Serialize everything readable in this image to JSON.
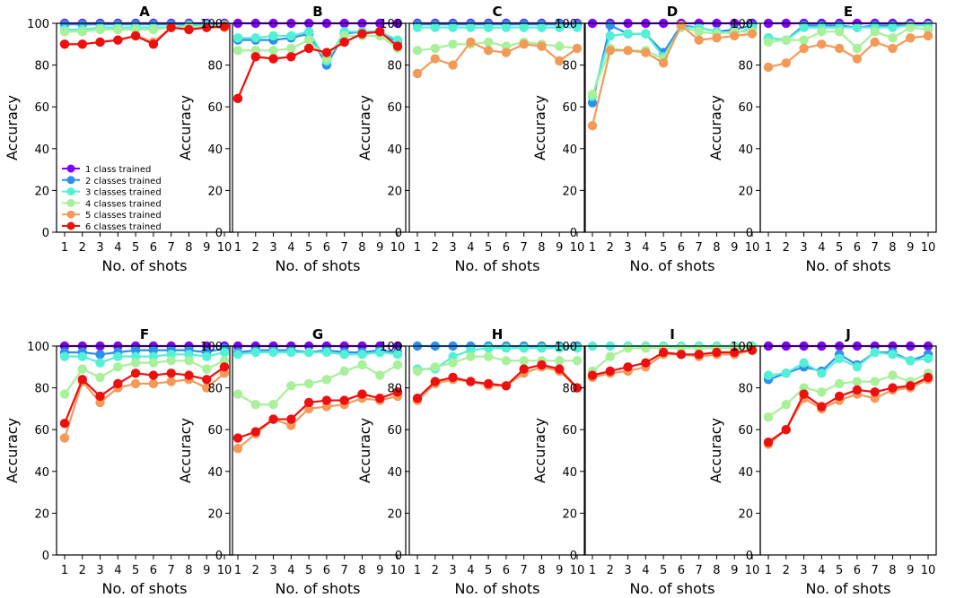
{
  "chart_data": {
    "type": "line",
    "shared": {
      "x": [
        1,
        2,
        3,
        4,
        5,
        6,
        7,
        8,
        9,
        10
      ],
      "xticks": [
        "1",
        "2",
        "3",
        "4",
        "5",
        "6",
        "7",
        "8",
        "9",
        "10"
      ],
      "xlabel": "No. of shots",
      "ylabel": "Accuracy",
      "ylim": [
        0,
        100
      ],
      "yticks": [
        0,
        20,
        40,
        60,
        80,
        100
      ],
      "legend": {
        "location": "lower-left of panel A",
        "entries": [
          "1 class trained",
          "2 classes trained",
          "3 classes trained",
          "4 classes trained",
          "5 classes trained",
          "6 classes trained"
        ]
      },
      "series_colors": [
        "#8000ff",
        "#2c90ec",
        "#52f0d6",
        "#a8f09a",
        "#f49a58",
        "#ee1010"
      ]
    },
    "panels": [
      {
        "title": "A",
        "series": [
          {
            "name": "1 class trained",
            "values": [
              100,
              100,
              100,
              100,
              100,
              100,
              100,
              100,
              100,
              100
            ]
          },
          {
            "name": "2 classes trained",
            "values": [
              99.5,
              99.5,
              99.5,
              99.5,
              99.5,
              99.5,
              99.5,
              99.5,
              99.5,
              99.5
            ]
          },
          {
            "name": "3 classes trained",
            "values": [
              97,
              97,
              98,
              98,
              98,
              98,
              98,
              99,
              99,
              99
            ]
          },
          {
            "name": "4 classes trained",
            "values": [
              96,
              96,
              97,
              97,
              97,
              97,
              98,
              98,
              98,
              99
            ]
          },
          {
            "name": "5 classes trained",
            "values": [
              90,
              90,
              91,
              92,
              94,
              91,
              98,
              97,
              98,
              98
            ]
          },
          {
            "name": "6 classes trained",
            "values": [
              90,
              90,
              91,
              92,
              94,
              90,
              98,
              97,
              98,
              98.5
            ]
          }
        ]
      },
      {
        "title": "B",
        "series": [
          {
            "name": "1 class trained",
            "values": [
              100,
              100,
              100,
              100,
              100,
              100,
              100,
              100,
              100,
              100
            ]
          },
          {
            "name": "2 classes trained",
            "values": [
              92,
              92,
              92,
              93,
              95,
              80,
              95,
              96,
              96,
              91
            ]
          },
          {
            "name": "3 classes trained",
            "values": [
              93,
              93,
              94,
              94,
              96,
              82,
              96,
              96,
              96,
              92
            ]
          },
          {
            "name": "4 classes trained",
            "values": [
              87,
              87,
              87,
              88,
              92,
              83,
              94,
              94,
              94,
              88
            ]
          },
          {
            "name": "5 classes trained",
            "values": [
              64,
              84,
              83,
              84,
              88,
              86,
              91,
              95,
              96,
              89
            ]
          },
          {
            "name": "6 classes trained",
            "values": [
              64,
              84,
              83,
              84,
              88,
              86,
              91,
              95,
              96,
              89
            ]
          }
        ]
      },
      {
        "title": "C",
        "series": [
          {
            "name": "1 class trained",
            "values": [
              100,
              100,
              100,
              100,
              100,
              100,
              100,
              100,
              100,
              100
            ]
          },
          {
            "name": "2 classes trained",
            "values": [
              99.5,
              99.5,
              99.5,
              99.5,
              99.5,
              99.5,
              99.5,
              99.5,
              99.5,
              99.5
            ]
          },
          {
            "name": "3 classes trained",
            "values": [
              98,
              98,
              98,
              98,
              98,
              98,
              98,
              98,
              98,
              98
            ]
          },
          {
            "name": "4 classes trained",
            "values": [
              87,
              88,
              90,
              90,
              91,
              89,
              91,
              90,
              89,
              88
            ]
          },
          {
            "name": "5 classes trained",
            "values": [
              76,
              83,
              80,
              91,
              87,
              86,
              90,
              89,
              82,
              88
            ]
          }
        ]
      },
      {
        "title": "D",
        "series": [
          {
            "name": "1 class trained",
            "values": [
              100,
              100,
              100,
              100,
              100,
              100,
              100,
              100,
              100,
              100
            ]
          },
          {
            "name": "2 classes trained",
            "values": [
              62,
              99,
              95,
              95,
              86,
              99,
              98,
              96,
              97,
              99
            ]
          },
          {
            "name": "3 classes trained",
            "values": [
              65,
              94,
              95,
              95,
              84,
              98,
              98,
              96,
              95,
              98
            ]
          },
          {
            "name": "4 classes trained",
            "values": [
              66,
              88,
              87,
              87,
              83,
              98,
              96,
              95,
              96,
              96
            ]
          },
          {
            "name": "5 classes trained",
            "values": [
              51,
              87,
              87,
              86,
              81,
              99,
              92,
              93,
              94,
              95
            ]
          }
        ]
      },
      {
        "title": "E",
        "series": [
          {
            "name": "1 class trained",
            "values": [
              100,
              100,
              100,
              100,
              100,
              100,
              100,
              100,
              100,
              100
            ]
          },
          {
            "name": "2 classes trained",
            "values": [
              93,
              92,
              99,
              99,
              99,
              98,
              99,
              99,
              99,
              99
            ]
          },
          {
            "name": "3 classes trained",
            "values": [
              93,
              92,
              98,
              98,
              98,
              98,
              98,
              98,
              99,
              99
            ]
          },
          {
            "name": "4 classes trained",
            "values": [
              91,
              92,
              92,
              96,
              96,
              88,
              96,
              93,
              98,
              97
            ]
          },
          {
            "name": "5 classes trained",
            "values": [
              79,
              81,
              88,
              90,
              88,
              83,
              91,
              88,
              93,
              94
            ]
          }
        ]
      },
      {
        "title": "F",
        "series": [
          {
            "name": "1 class trained",
            "values": [
              100,
              100,
              100,
              100,
              100,
              100,
              100,
              100,
              100,
              100
            ]
          },
          {
            "name": "2 classes trained",
            "values": [
              97,
              97,
              96,
              97,
              98,
              98,
              98,
              98,
              97,
              99
            ]
          },
          {
            "name": "3 classes trained",
            "values": [
              95,
              95,
              92,
              95,
              95,
              95,
              96,
              96,
              95,
              97
            ]
          },
          {
            "name": "4 classes trained",
            "values": [
              77,
              89,
              85,
              90,
              92,
              92,
              93,
              93,
              89,
              93
            ]
          },
          {
            "name": "5 classes trained",
            "values": [
              56,
              83,
              73,
              80,
              82,
              82,
              83,
              84,
              80,
              87
            ]
          },
          {
            "name": "6 classes trained",
            "values": [
              63,
              84,
              76,
              82,
              87,
              86,
              87,
              86,
              84,
              90
            ]
          }
        ]
      },
      {
        "title": "G",
        "series": [
          {
            "name": "1 class trained",
            "values": [
              100,
              100,
              100,
              100,
              100,
              100,
              100,
              100,
              100,
              100
            ]
          },
          {
            "name": "2 classes trained",
            "values": [
              97,
              98,
              98,
              98,
              97,
              98,
              97,
              97,
              98,
              97
            ]
          },
          {
            "name": "3 classes trained",
            "values": [
              96,
              97,
              97,
              97,
              97,
              97,
              96,
              96,
              97,
              96
            ]
          },
          {
            "name": "4 classes trained",
            "values": [
              77,
              72,
              72,
              81,
              82,
              84,
              88,
              91,
              86,
              91
            ]
          },
          {
            "name": "5 classes trained",
            "values": [
              51,
              58,
              65,
              62,
              70,
              71,
              72,
              75,
              74,
              76
            ]
          },
          {
            "name": "6 classes trained",
            "values": [
              56,
              59,
              65,
              65,
              73,
              74,
              74,
              77,
              75,
              78
            ]
          }
        ]
      },
      {
        "title": "H",
        "series": [
          {
            "name": "2 classes trained",
            "values": [
              100,
              100,
              100,
              100,
              100,
              100,
              100,
              100,
              100,
              100
            ]
          },
          {
            "name": "3 classes trained",
            "values": [
              89,
              89,
              95,
              98,
              99,
              99,
              99,
              99,
              99,
              99
            ]
          },
          {
            "name": "4 classes trained",
            "values": [
              88,
              90,
              92,
              95,
              95,
              93,
              93,
              93,
              93,
              93
            ]
          },
          {
            "name": "5 classes trained",
            "values": [
              74,
              82,
              84,
              83,
              81,
              81,
              87,
              90,
              88,
              80
            ]
          },
          {
            "name": "6 classes trained",
            "values": [
              75,
              83,
              85,
              83,
              82,
              81,
              89,
              91,
              89,
              80
            ]
          }
        ]
      },
      {
        "title": "I",
        "series": [
          {
            "name": "3 classes trained",
            "values": [
              100,
              100,
              100,
              100,
              100,
              100,
              100,
              100,
              100,
              100
            ]
          },
          {
            "name": "4 classes trained",
            "values": [
              88,
              95,
              99,
              99,
              99,
              99,
              99,
              99,
              99,
              99
            ]
          },
          {
            "name": "5 classes trained",
            "values": [
              85,
              87,
              88,
              90,
              96,
              96,
              95,
              96,
              96,
              98
            ]
          },
          {
            "name": "6 classes trained",
            "values": [
              86,
              88,
              90,
              92,
              97,
              96,
              96,
              97,
              97,
              98
            ]
          }
        ]
      },
      {
        "title": "J",
        "series": [
          {
            "name": "1 class trained",
            "values": [
              100,
              100,
              100,
              100,
              100,
              100,
              100,
              100,
              100,
              100
            ]
          },
          {
            "name": "2 classes trained",
            "values": [
              84,
              87,
              90,
              88,
              96,
              91,
              97,
              97,
              93,
              96
            ]
          },
          {
            "name": "3 classes trained",
            "values": [
              86,
              87,
              92,
              87,
              94,
              90,
              97,
              96,
              93,
              94
            ]
          },
          {
            "name": "4 classes trained",
            "values": [
              66,
              72,
              80,
              78,
              82,
              83,
              83,
              86,
              83,
              87
            ]
          },
          {
            "name": "5 classes trained",
            "values": [
              53,
              60,
              75,
              70,
              74,
              77,
              75,
              79,
              80,
              84
            ]
          },
          {
            "name": "6 classes trained",
            "values": [
              54,
              60,
              77,
              71,
              76,
              79,
              78,
              80,
              81,
              85
            ]
          }
        ]
      }
    ]
  }
}
